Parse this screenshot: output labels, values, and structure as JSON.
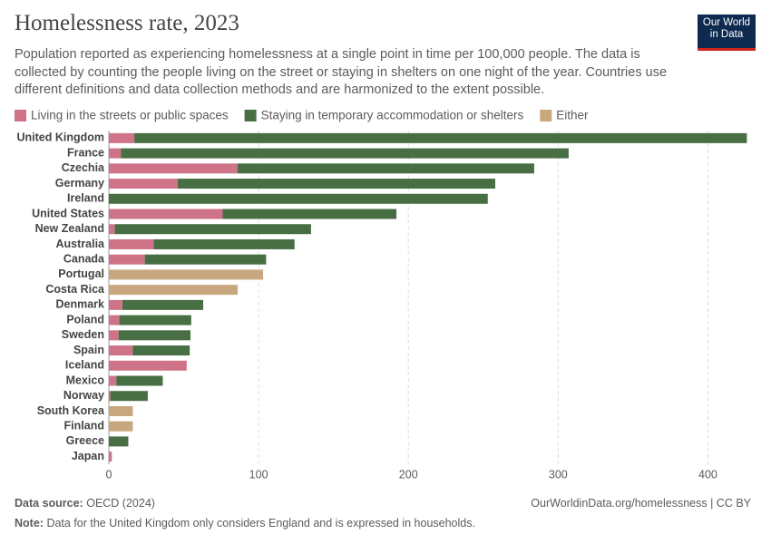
{
  "chart_data": {
    "type": "bar",
    "orientation": "horizontal",
    "stacked": true,
    "title": "Homelessness rate, 2023",
    "subtitle": "Population reported as experiencing homelessness at a single point in time per 100,000 people. The data is collected by counting the people living on the street or staying in shelters on one night of the year. Countries use different definitions and data collection methods and are harmonized to the extent possible.",
    "logo": [
      "Our World",
      "in Data"
    ],
    "categories": [
      "United Kingdom",
      "France",
      "Czechia",
      "Germany",
      "Ireland",
      "United States",
      "New Zealand",
      "Australia",
      "Canada",
      "Portugal",
      "Costa Rica",
      "Denmark",
      "Poland",
      "Sweden",
      "Spain",
      "Iceland",
      "Mexico",
      "Norway",
      "South Korea",
      "Finland",
      "Greece",
      "Japan"
    ],
    "series": [
      {
        "name": "Living in the streets or public spaces",
        "color": "#cf7488",
        "values": [
          17,
          8,
          86,
          46,
          null,
          76,
          4,
          30,
          24,
          null,
          null,
          9,
          7,
          6.5,
          16,
          52,
          5,
          1,
          null,
          null,
          null,
          2
        ]
      },
      {
        "name": "Staying in temporary accommodation or shelters",
        "color": "#476f43",
        "values": [
          409,
          299,
          198,
          212,
          253,
          116,
          131,
          94,
          81,
          null,
          null,
          54,
          48,
          48,
          38,
          null,
          31,
          25,
          null,
          null,
          13,
          null
        ]
      },
      {
        "name": "Either",
        "color": "#c9a77e",
        "values": [
          null,
          null,
          null,
          null,
          null,
          null,
          null,
          null,
          null,
          103,
          86,
          null,
          null,
          null,
          null,
          null,
          null,
          null,
          16,
          16,
          null,
          null
        ]
      }
    ],
    "xlim": [
      0,
      430
    ],
    "xticks": [
      0,
      100,
      200,
      300,
      400
    ],
    "grid": true,
    "source_label": "Data source:",
    "source": "OECD (2024)",
    "url": "OurWorldinData.org/homelessness | CC BY",
    "note_label": "Note:",
    "note": "Data for the United Kingdom only considers England and is expressed in households."
  }
}
